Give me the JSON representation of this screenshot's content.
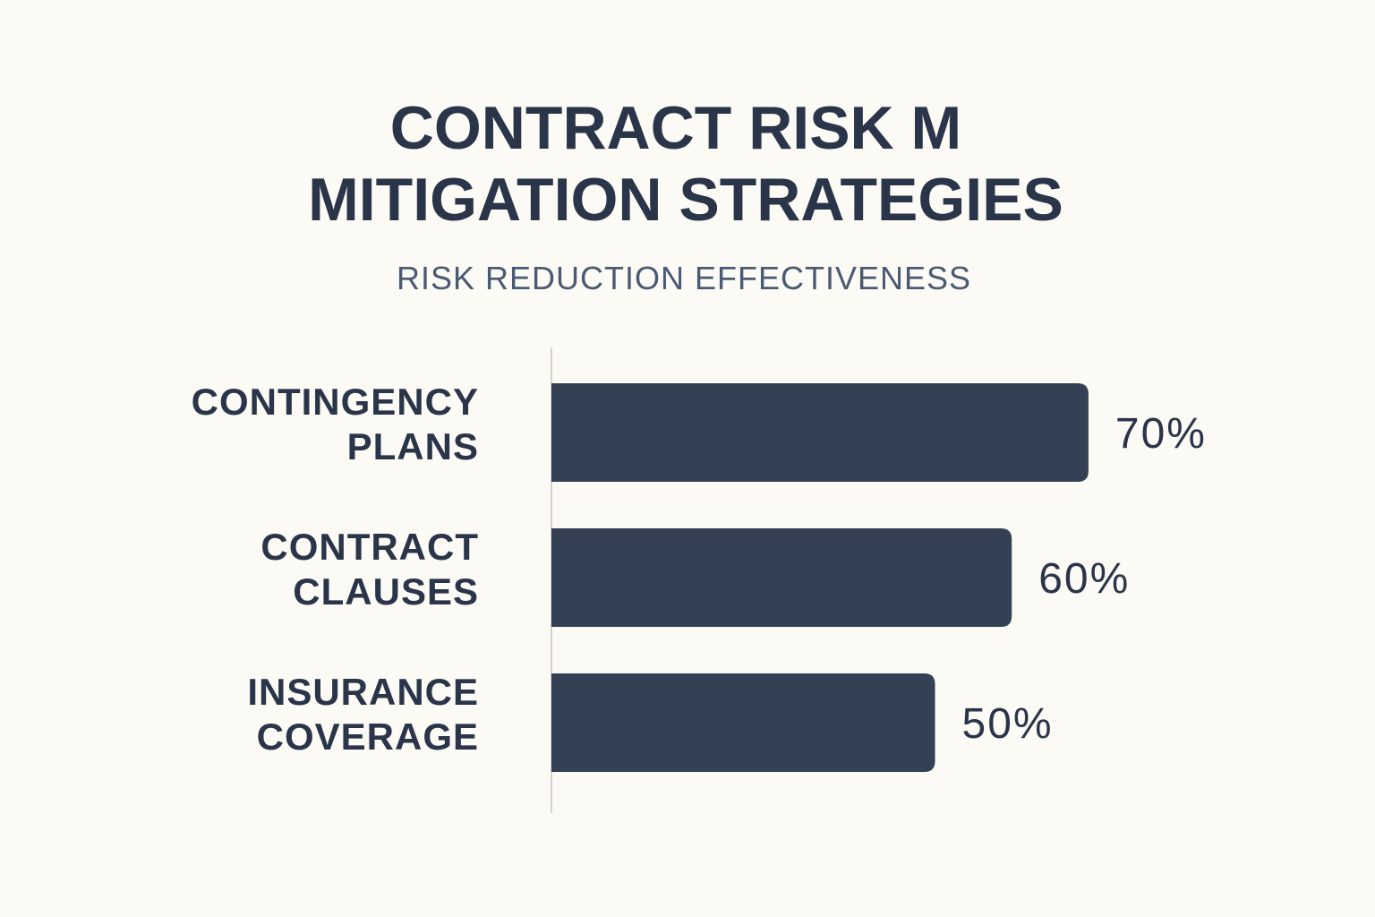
{
  "chart_data": {
    "type": "bar",
    "orientation": "horizontal",
    "title_lines": [
      "CONTRACT RISK M",
      "MITIGATION STRATEGIES"
    ],
    "subtitle": "RISK REDUCTION EFFECTIVENESS",
    "categories": [
      [
        "CONTINGENCY",
        "PLANS"
      ],
      [
        "CONTRACT",
        "CLAUSES"
      ],
      [
        "INSURANCE",
        "COVERAGE"
      ]
    ],
    "values": [
      70,
      60,
      50
    ],
    "value_labels": [
      "70%",
      "60%",
      "50%"
    ],
    "unit": "%",
    "xlim": [
      0,
      100
    ],
    "grid": false,
    "colors": {
      "bar": "#344054",
      "text": "#2a3549",
      "subtitle": "#4a5a72",
      "axis": "#d6d3cc",
      "background": "#fcfaf5"
    }
  }
}
